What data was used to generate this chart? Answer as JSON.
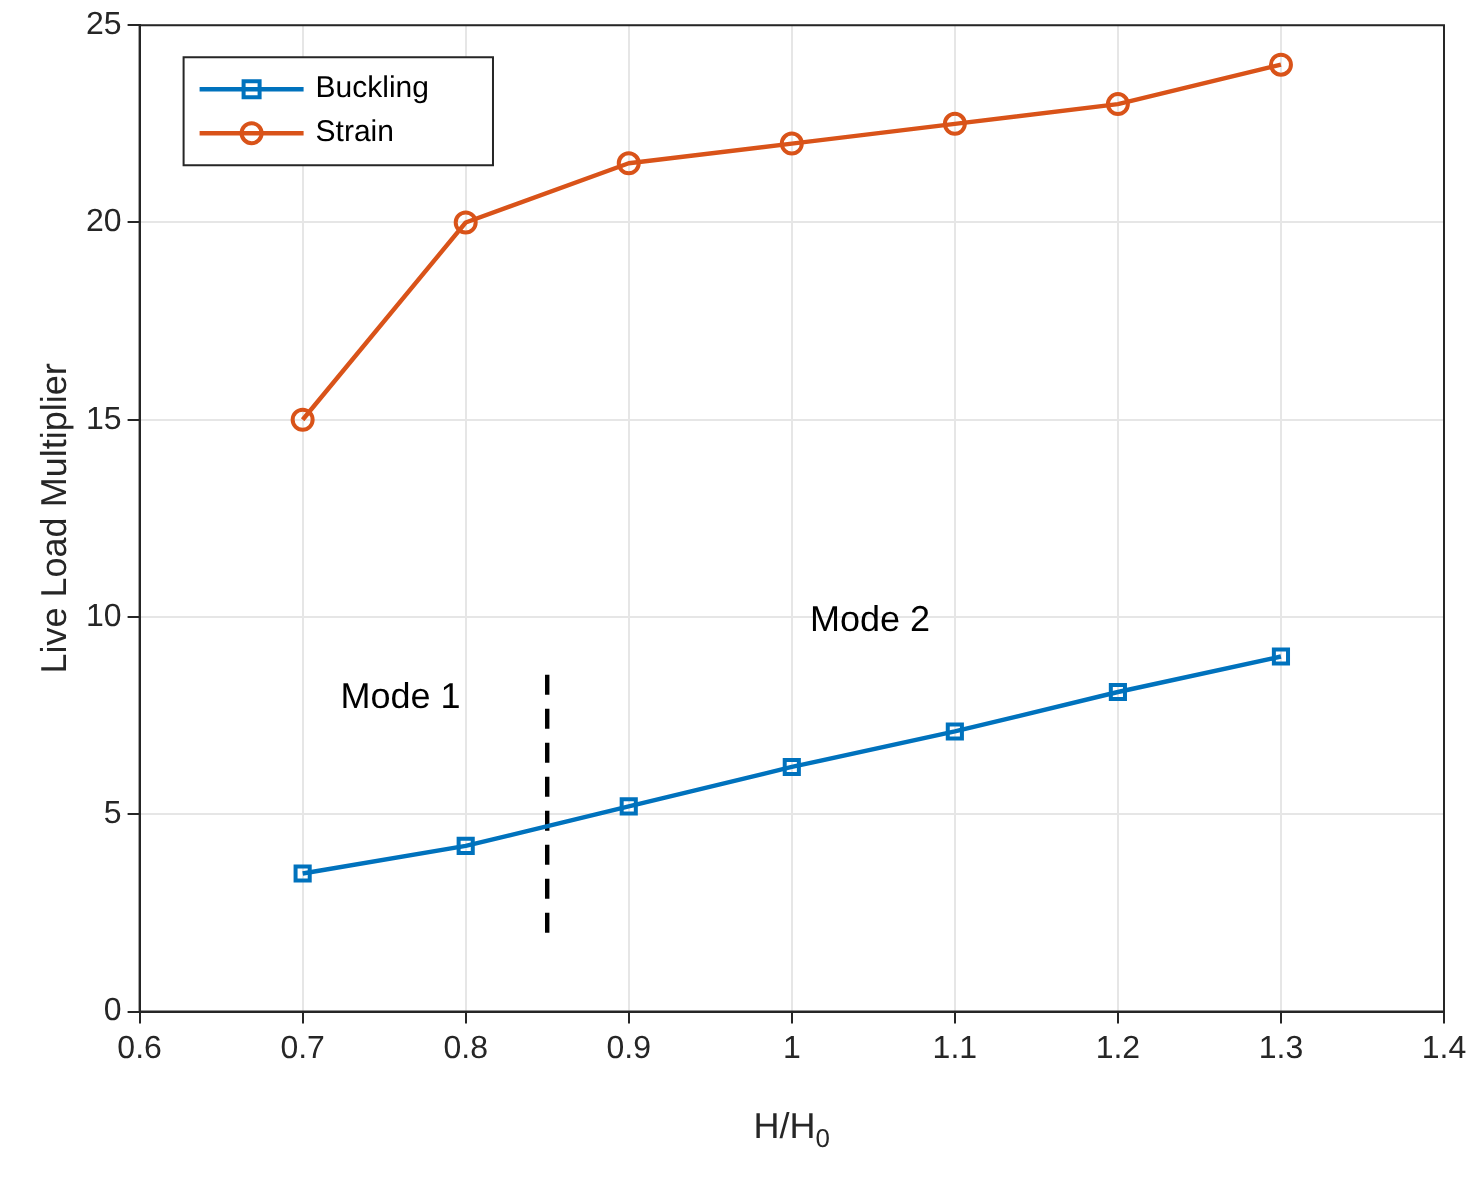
{
  "chart_data": {
    "type": "line",
    "xlabel": "H/H$_{0}$",
    "ylabel": "Live Load Multiplier",
    "x": [
      0.7,
      0.8,
      0.9,
      1.0,
      1.1,
      1.2,
      1.3
    ],
    "series": [
      {
        "name": "Buckling",
        "color": "#0072bd",
        "marker": "square",
        "values": [
          3.5,
          4.2,
          5.2,
          6.2,
          7.1,
          8.1,
          9.0
        ]
      },
      {
        "name": "Strain",
        "color": "#d95319",
        "marker": "circle",
        "values": [
          15,
          20,
          21.5,
          22,
          22.5,
          23,
          24
        ]
      },
      {
        "x": [
          0.85,
          0.85
        ],
        "color": "#000000",
        "marker": "none",
        "line_style": "dashed",
        "values": [
          2,
          8.7
        ]
      }
    ],
    "xlim": [
      0.6,
      1.4
    ],
    "xticks": [
      0.6,
      0.7,
      0.8,
      0.9,
      1,
      1.1,
      1.2,
      1.3,
      1.4
    ],
    "ylim": [
      0,
      25
    ],
    "yticks": [
      0,
      5,
      10,
      15,
      20,
      25
    ],
    "grid": true,
    "legend": "top left",
    "annotations": [
      "Mode 1",
      "Mode 2"
    ]
  }
}
